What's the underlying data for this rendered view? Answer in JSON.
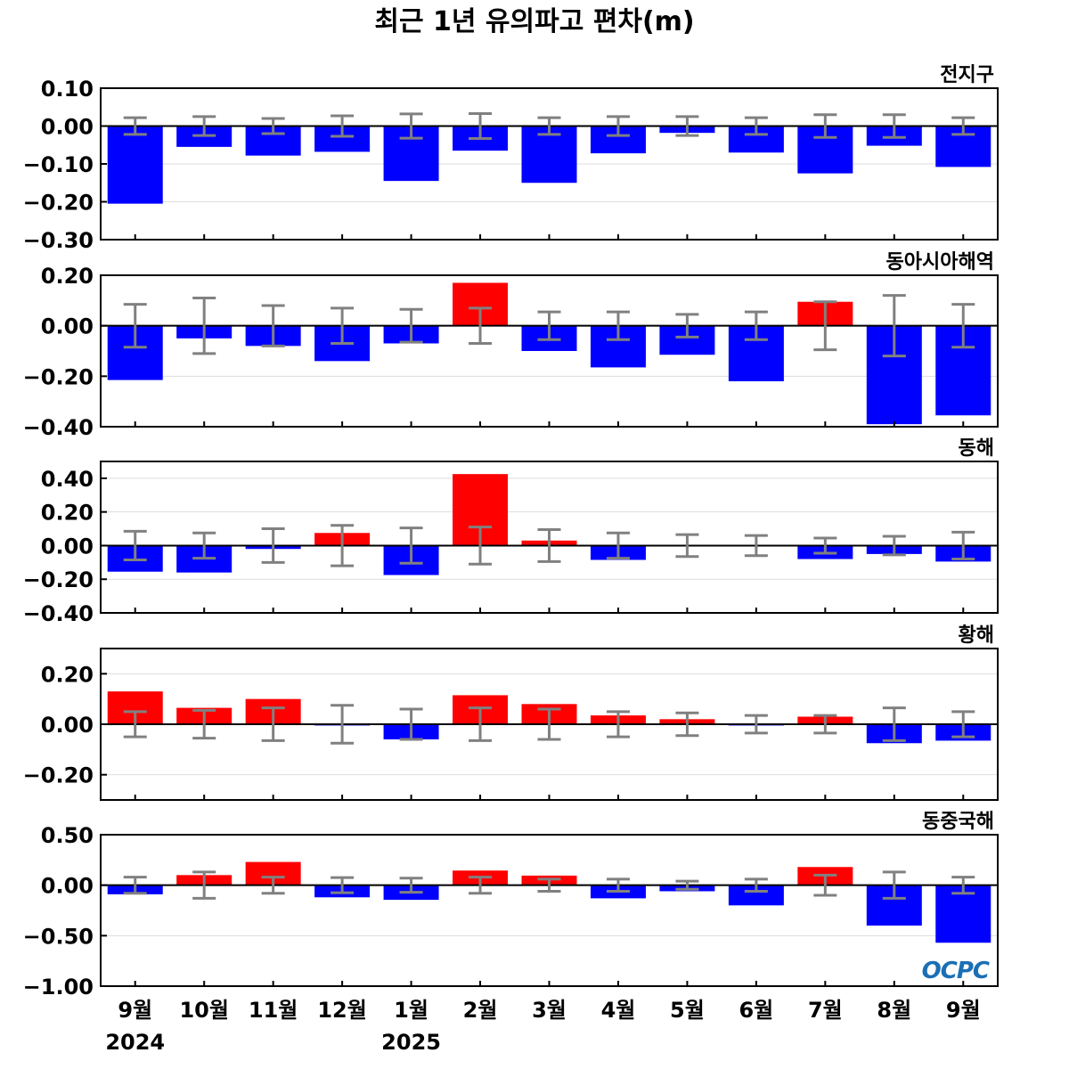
{
  "colors": {
    "positive": "#ff0000",
    "negative": "#0000ff",
    "errorbar": "#808080",
    "grid": "#dddddd",
    "zeroline": "#000000",
    "logo": "#1a6fb5"
  },
  "chart_data": {
    "type": "bar",
    "title": "최근 1년 유의파고 편차(m)",
    "categories": [
      "9월",
      "10월",
      "11월",
      "12월",
      "1월",
      "2월",
      "3월",
      "4월",
      "5월",
      "6월",
      "7월",
      "8월",
      "9월"
    ],
    "year_labels": [
      {
        "index": 0,
        "label": "2024"
      },
      {
        "index": 4,
        "label": "2025"
      }
    ],
    "logo": "OCPC",
    "panels": [
      {
        "name": "전지구",
        "ylim": [
          -0.3,
          0.1
        ],
        "yticks": [
          0.1,
          0.0,
          -0.1,
          -0.2,
          -0.3
        ],
        "ytick_labels": [
          "0.10",
          "0.00",
          "−0.10",
          "−0.20",
          "−0.30"
        ],
        "values": [
          -0.205,
          -0.055,
          -0.078,
          -0.068,
          -0.145,
          -0.065,
          -0.15,
          -0.072,
          -0.018,
          -0.07,
          -0.125,
          -0.052,
          -0.108
        ],
        "error": [
          0.022,
          0.025,
          0.02,
          0.027,
          0.032,
          0.033,
          0.022,
          0.025,
          0.025,
          0.022,
          0.03,
          0.03,
          0.022
        ]
      },
      {
        "name": "동아시아해역",
        "ylim": [
          -0.4,
          0.2
        ],
        "yticks": [
          0.2,
          0.0,
          -0.2,
          -0.4
        ],
        "ytick_labels": [
          "0.20",
          "0.00",
          "−0.20",
          "−0.40"
        ],
        "values": [
          -0.215,
          -0.05,
          -0.08,
          -0.14,
          -0.07,
          0.17,
          -0.1,
          -0.165,
          -0.115,
          -0.22,
          0.095,
          -0.39,
          -0.355
        ],
        "error": [
          0.085,
          0.11,
          0.08,
          0.07,
          0.065,
          0.07,
          0.055,
          0.055,
          0.045,
          0.055,
          0.095,
          0.12,
          0.085
        ]
      },
      {
        "name": "동해",
        "ylim": [
          -0.4,
          0.5
        ],
        "yticks": [
          0.4,
          0.2,
          0.0,
          -0.2,
          -0.4
        ],
        "ytick_labels": [
          "0.40",
          "0.20",
          "0.00",
          "−0.20",
          "−0.40"
        ],
        "values": [
          -0.155,
          -0.16,
          -0.02,
          0.075,
          -0.175,
          0.425,
          0.03,
          -0.085,
          0.0,
          0.005,
          -0.08,
          -0.05,
          -0.095
        ],
        "error": [
          0.085,
          0.075,
          0.1,
          0.12,
          0.105,
          0.11,
          0.095,
          0.075,
          0.065,
          0.06,
          0.045,
          0.055,
          0.08
        ]
      },
      {
        "name": "황해",
        "ylim": [
          -0.3,
          0.3
        ],
        "yticks": [
          0.2,
          0.0,
          -0.2
        ],
        "ytick_labels": [
          "0.20",
          "0.00",
          "−0.20"
        ],
        "values": [
          0.13,
          0.065,
          0.1,
          -0.005,
          -0.06,
          0.115,
          0.08,
          0.035,
          0.02,
          -0.005,
          0.03,
          -0.075,
          -0.065
        ],
        "error": [
          0.05,
          0.055,
          0.065,
          0.075,
          0.06,
          0.065,
          0.06,
          0.05,
          0.045,
          0.035,
          0.035,
          0.065,
          0.05
        ]
      },
      {
        "name": "동중국해",
        "ylim": [
          -1.0,
          0.5
        ],
        "yticks": [
          0.5,
          0.0,
          -0.5,
          -1.0
        ],
        "ytick_labels": [
          "0.50",
          "0.00",
          "−0.50",
          "−1.00"
        ],
        "values": [
          -0.09,
          0.1,
          0.23,
          -0.12,
          -0.145,
          0.145,
          0.095,
          -0.13,
          -0.06,
          -0.2,
          0.18,
          -0.4,
          -0.57
        ],
        "error": [
          0.08,
          0.13,
          0.08,
          0.075,
          0.07,
          0.08,
          0.06,
          0.06,
          0.04,
          0.06,
          0.1,
          0.13,
          0.08
        ]
      }
    ]
  }
}
